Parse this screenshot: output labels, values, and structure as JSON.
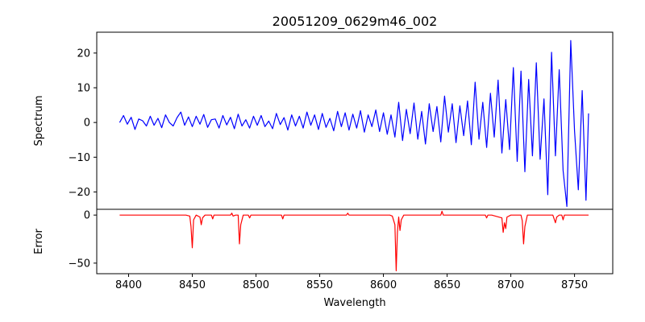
{
  "chart_data": [
    {
      "type": "line",
      "panel": "top",
      "title": "20051209_0629m46_002",
      "xlabel": "",
      "ylabel": "Spectrum",
      "xlim": [
        8375,
        8780
      ],
      "ylim": [
        -25,
        26
      ],
      "xticks": [],
      "yticks": [
        -20,
        -10,
        0,
        10,
        20
      ],
      "grid": false,
      "series": [
        {
          "color": "#0000ff",
          "x": [
            8393,
            8396,
            8399,
            8402,
            8405,
            8408,
            8411,
            8414,
            8417,
            8420,
            8423,
            8426,
            8429,
            8432,
            8435,
            8438,
            8441,
            8444,
            8447,
            8450,
            8453,
            8456,
            8459,
            8462,
            8465,
            8468,
            8471,
            8474,
            8477,
            8480,
            8483,
            8486,
            8489,
            8492,
            8495,
            8498,
            8501,
            8504,
            8507,
            8510,
            8513,
            8516,
            8519,
            8522,
            8525,
            8528,
            8531,
            8534,
            8537,
            8540,
            8543,
            8546,
            8549,
            8552,
            8555,
            8558,
            8561,
            8564,
            8567,
            8570,
            8573,
            8576,
            8579,
            8582,
            8585,
            8588,
            8591,
            8594,
            8597,
            8600,
            8603,
            8606,
            8609,
            8612,
            8615,
            8618,
            8621,
            8624,
            8627,
            8630,
            8633,
            8636,
            8639,
            8642,
            8645,
            8648,
            8651,
            8654,
            8657,
            8660,
            8663,
            8666,
            8669,
            8672,
            8675,
            8678,
            8681,
            8684,
            8687,
            8690,
            8693,
            8696,
            8699,
            8702,
            8705,
            8708,
            8711,
            8714,
            8717,
            8720,
            8723,
            8726,
            8729,
            8732,
            8735,
            8738,
            8741,
            8744,
            8747,
            8750,
            8753,
            8756,
            8759,
            8761
          ],
          "y": [
            0,
            2,
            -0.5,
            1.5,
            -2,
            1,
            0.5,
            -1,
            1.8,
            -0.8,
            1.2,
            -1.5,
            2.2,
            0,
            -1,
            1.4,
            3,
            -0.8,
            1.6,
            -1.2,
            1.8,
            -0.5,
            2.3,
            -1.4,
            0.8,
            1,
            -1.6,
            2,
            -0.7,
            1.5,
            -1.8,
            2.4,
            -1,
            0.8,
            -1.6,
            1.8,
            -0.8,
            2,
            -1.2,
            0.4,
            -1.8,
            2.6,
            -0.6,
            1.4,
            -2.2,
            2.2,
            -1,
            1.8,
            -1.6,
            3,
            -0.8,
            2.2,
            -2,
            2.6,
            -1.4,
            1.2,
            -2.4,
            3.2,
            -1.2,
            2.8,
            -2.2,
            2.4,
            -1.6,
            3.4,
            -2.8,
            2.2,
            -1.2,
            3.6,
            -2.6,
            2.8,
            -3.4,
            2.2,
            -4.2,
            5.8,
            -5.2,
            3.8,
            -3.2,
            5.6,
            -4.8,
            3.2,
            -6.2,
            5.4,
            -2.6,
            4.6,
            -5.6,
            7.6,
            -2.8,
            5.4,
            -5.8,
            4.8,
            -3.8,
            6.2,
            -6.4,
            11.6,
            -4.8,
            5.8,
            -7.2,
            8.4,
            -4.2,
            12.2,
            -8.8,
            6.6,
            -7.8,
            15.8,
            -11.2,
            14.8,
            -14.2,
            12.4,
            -9.6,
            17.2,
            -10.6,
            6.8,
            -20.8,
            20.2,
            -9.6,
            15.2,
            -13.8,
            -24.2,
            23.6,
            -2.4,
            -19.4,
            9.2,
            -22.4,
            2.6
          ]
        }
      ]
    },
    {
      "type": "line",
      "panel": "bottom",
      "title": "",
      "xlabel": "Wavelength",
      "ylabel": "Error",
      "xlim": [
        8375,
        8780
      ],
      "ylim": [
        -61,
        6
      ],
      "xticks": [
        8400,
        8450,
        8500,
        8550,
        8600,
        8650,
        8700,
        8750
      ],
      "yticks": [
        -50,
        0
      ],
      "grid": false,
      "series": [
        {
          "color": "#ff0000",
          "x": [
            8393,
            8420,
            8445,
            8448,
            8449,
            8450,
            8451,
            8453,
            8456,
            8457,
            8458,
            8460,
            8465,
            8466,
            8467,
            8470,
            8480,
            8481,
            8482,
            8484,
            8486,
            8487,
            8488,
            8490,
            8494,
            8495,
            8496,
            8500,
            8520,
            8521,
            8522,
            8524,
            8550,
            8571,
            8572,
            8573,
            8580,
            8600,
            8605,
            8607,
            8609,
            8610,
            8611,
            8612,
            8613,
            8614,
            8616,
            8620,
            8640,
            8645,
            8646,
            8647,
            8650,
            8680,
            8681,
            8682,
            8685,
            8693,
            8694,
            8695,
            8696,
            8697,
            8700,
            8708,
            8709,
            8710,
            8711,
            8713,
            8720,
            8733,
            8734,
            8735,
            8736,
            8738,
            8740,
            8741,
            8742,
            8745,
            8755,
            8761
          ],
          "y": [
            0,
            0,
            0,
            -1,
            -12,
            -34,
            -5,
            0,
            -2,
            -10,
            -3,
            0,
            0,
            -4,
            0,
            0,
            0,
            2,
            -1,
            0,
            0,
            -30,
            -10,
            0,
            0,
            -3,
            0,
            0,
            0,
            -4,
            0,
            0,
            0,
            0,
            2,
            0,
            0,
            0,
            0,
            -1,
            -10,
            -58,
            -18,
            -2,
            -16,
            -5,
            0,
            0,
            0,
            0,
            4,
            0,
            0,
            0,
            -3,
            0,
            0,
            -3,
            -18,
            -8,
            -14,
            -2,
            0,
            0,
            -6,
            -30,
            -12,
            0,
            0,
            0,
            -4,
            -8,
            -2,
            0,
            0,
            -5,
            0,
            0,
            0,
            0
          ]
        }
      ]
    }
  ]
}
